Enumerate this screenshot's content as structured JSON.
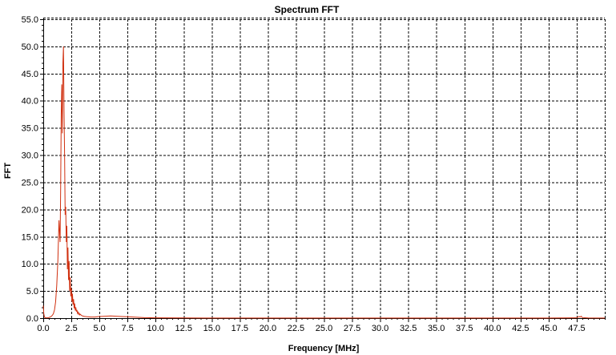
{
  "chart_data": {
    "type": "line",
    "title": "Spectrum FFT",
    "xlabel": "Frequency [MHz]",
    "ylabel": "FFT",
    "xlim": [
      0,
      50
    ],
    "ylim": [
      0,
      55
    ],
    "x_ticks": [
      0,
      2.5,
      5,
      7.5,
      10,
      12.5,
      15,
      17.5,
      20,
      22.5,
      25,
      27.5,
      30,
      32.5,
      35,
      37.5,
      40,
      42.5,
      45,
      47.5
    ],
    "x_tick_labels": [
      "0.0",
      "2.5",
      "5.0",
      "7.5",
      "10.0",
      "12.5",
      "15.0",
      "17.5",
      "20.0",
      "22.5",
      "25.0",
      "27.5",
      "30.0",
      "32.5",
      "35.0",
      "37.5",
      "40.0",
      "42.5",
      "45.0",
      "47.5"
    ],
    "y_ticks": [
      0,
      5,
      10,
      15,
      20,
      25,
      30,
      35,
      40,
      45,
      50,
      55
    ],
    "y_tick_labels": [
      "0.0",
      "5.0",
      "10.0",
      "15.0",
      "20.0",
      "25.0",
      "30.0",
      "35.0",
      "40.0",
      "45.0",
      "50.0",
      "55.0"
    ],
    "grid": true,
    "series_color": "#d03010",
    "series": [
      {
        "x": [
          0.0,
          0.05,
          0.1,
          0.15,
          0.2,
          0.3,
          0.4,
          0.5,
          0.6,
          0.7,
          0.8,
          0.9,
          1.0,
          1.1,
          1.2,
          1.3,
          1.4,
          1.5,
          1.55,
          1.6,
          1.65,
          1.7,
          1.75,
          1.8,
          1.85,
          1.9,
          1.95,
          2.0,
          2.05,
          2.1,
          2.15,
          2.2,
          2.25,
          2.3,
          2.35,
          2.4,
          2.45,
          2.5,
          2.55,
          2.6,
          2.65,
          2.7,
          2.75,
          2.8,
          2.85,
          2.9,
          2.95,
          3.0,
          3.05,
          3.1,
          3.15,
          3.2,
          3.25,
          3.3,
          3.4,
          3.5,
          3.6,
          3.7,
          3.8,
          3.9,
          4.0,
          4.2,
          4.4,
          4.6,
          4.8,
          5.0,
          5.5,
          6.0,
          6.5,
          7.0,
          7.5,
          8.0,
          8.5,
          9.0,
          10.0,
          12.5,
          15.0,
          20.0,
          25.0,
          30.0,
          35.0,
          40.0,
          45.0,
          47.5,
          47.6,
          47.7,
          47.8,
          47.9,
          48.0,
          48.5,
          50.0
        ],
        "values": [
          2.3,
          0.8,
          0.3,
          0.1,
          0.05,
          0.05,
          0.05,
          0.1,
          0.2,
          0.3,
          0.5,
          0.8,
          1.5,
          3.0,
          6.0,
          10.5,
          18.0,
          14.0,
          24.0,
          37.5,
          43.0,
          34.0,
          47.0,
          50.0,
          38.0,
          30.0,
          19.0,
          20.5,
          14.0,
          17.0,
          9.0,
          13.0,
          7.0,
          10.5,
          5.0,
          7.5,
          4.0,
          5.5,
          3.0,
          4.5,
          2.5,
          3.5,
          1.8,
          2.7,
          1.4,
          2.0,
          1.2,
          1.5,
          0.9,
          1.1,
          0.7,
          0.9,
          0.6,
          0.7,
          0.5,
          0.4,
          0.35,
          0.3,
          0.3,
          0.25,
          0.25,
          0.2,
          0.2,
          0.2,
          0.25,
          0.3,
          0.35,
          0.4,
          0.35,
          0.3,
          0.25,
          0.2,
          0.15,
          0.1,
          0.05,
          0.03,
          0.02,
          0.02,
          0.02,
          0.02,
          0.02,
          0.02,
          0.02,
          0.05,
          0.15,
          0.3,
          0.2,
          0.35,
          0.1,
          0.03,
          0.02
        ]
      }
    ]
  }
}
